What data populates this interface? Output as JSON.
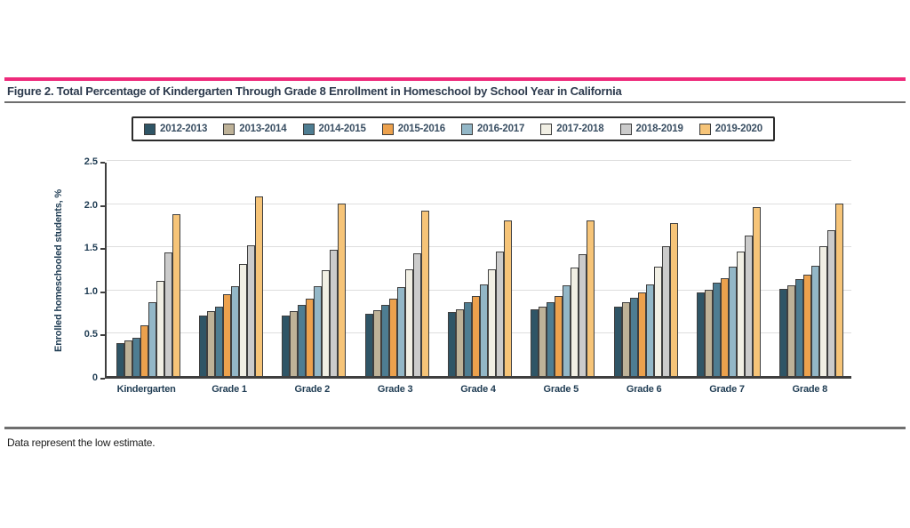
{
  "page": {
    "figure_title": "Figure 2. Total Percentage of Kindergarten Through Grade 8 Enrollment in Homeschool by School Year in California",
    "footnote": "Data represent the low estimate."
  },
  "colors": {
    "accent_pink": "#ee2a7b",
    "rule_gray": "#6e6e6e",
    "axis_line": "#3e3e3e",
    "grid_gray": "#dedede",
    "text_navy": "#1f3c53"
  },
  "chart_data": {
    "type": "bar",
    "title": "",
    "xlabel": "",
    "ylabel": "Enrolled homeschooled students, %",
    "ylim": [
      0,
      2.5
    ],
    "yticks": [
      0,
      0.5,
      1.0,
      1.5,
      2.0,
      2.5
    ],
    "ytick_labels": [
      "0",
      "0.5",
      "1.0",
      "1.5",
      "2.0",
      "2.5"
    ],
    "grid": true,
    "legend_position": "top",
    "categories": [
      "Kindergarten",
      "Grade 1",
      "Grade 2",
      "Grade 3",
      "Grade 4",
      "Grade 5",
      "Grade 6",
      "Grade 7",
      "Grade 8"
    ],
    "series": [
      {
        "name": "2012-2013",
        "color": "#2f5566",
        "values": [
          0.38,
          0.7,
          0.7,
          0.72,
          0.74,
          0.77,
          0.8,
          0.97,
          1.01
        ]
      },
      {
        "name": "2013-2014",
        "color": "#beb298",
        "values": [
          0.41,
          0.75,
          0.75,
          0.76,
          0.77,
          0.8,
          0.85,
          1.0,
          1.05
        ]
      },
      {
        "name": "2014-2015",
        "color": "#4e7d92",
        "values": [
          0.44,
          0.8,
          0.82,
          0.82,
          0.85,
          0.85,
          0.91,
          1.08,
          1.12
        ]
      },
      {
        "name": "2015-2016",
        "color": "#eca14d",
        "values": [
          0.59,
          0.95,
          0.89,
          0.9,
          0.93,
          0.93,
          0.97,
          1.13,
          1.17
        ]
      },
      {
        "name": "2016-2017",
        "color": "#93b7c7",
        "values": [
          0.85,
          1.04,
          1.04,
          1.03,
          1.06,
          1.05,
          1.06,
          1.27,
          1.28
        ]
      },
      {
        "name": "2017-2018",
        "color": "#f1efe4",
        "values": [
          1.1,
          1.3,
          1.22,
          1.23,
          1.23,
          1.25,
          1.27,
          1.44,
          1.5
        ]
      },
      {
        "name": "2018-2019",
        "color": "#cbcbcb",
        "values": [
          1.43,
          1.51,
          1.46,
          1.42,
          1.44,
          1.41,
          1.5,
          1.63,
          1.69
        ]
      },
      {
        "name": "2019-2020",
        "color": "#f6c478",
        "values": [
          1.87,
          2.08,
          2.0,
          1.91,
          1.8,
          1.8,
          1.77,
          1.95,
          2.0
        ]
      }
    ]
  }
}
